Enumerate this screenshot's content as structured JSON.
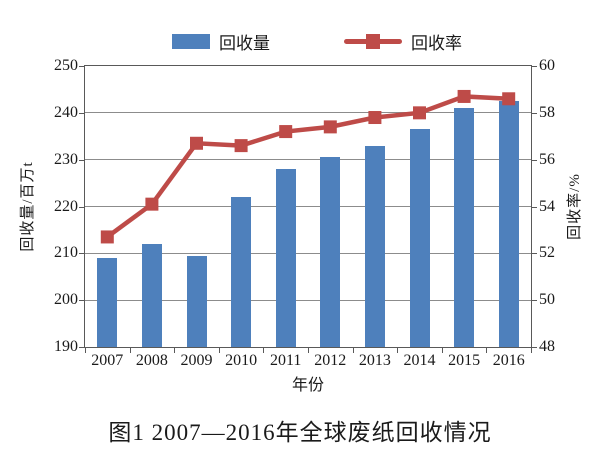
{
  "figure": {
    "caption": "图1 2007—2016年全球废纸回收情况"
  },
  "chart_data": {
    "type": "combo",
    "categories": [
      "2007",
      "2008",
      "2009",
      "2010",
      "2011",
      "2012",
      "2013",
      "2014",
      "2015",
      "2016"
    ],
    "series": [
      {
        "name": "回收量",
        "type": "bar",
        "axis": "left",
        "values": [
          209,
          212,
          209.5,
          222,
          228,
          230.5,
          233,
          236.5,
          241,
          242.5
        ]
      },
      {
        "name": "回收率",
        "type": "line",
        "axis": "right",
        "values": [
          52.7,
          54.1,
          56.7,
          56.6,
          57.2,
          57.4,
          57.8,
          58.0,
          58.7,
          58.6
        ]
      }
    ],
    "left_axis": {
      "title": "回收量/百万t",
      "min": 190,
      "max": 250,
      "ticks": [
        250,
        240,
        230,
        220,
        210,
        200,
        190
      ]
    },
    "right_axis": {
      "title": "回收率/%",
      "min": 48,
      "max": 60,
      "ticks": [
        60,
        58,
        56,
        54,
        52,
        50,
        48
      ]
    },
    "x_axis": {
      "title": "年份"
    },
    "grid": true,
    "legend_position": "top"
  },
  "colors": {
    "bar": "#4E80BC",
    "line": "#BE4B48",
    "grid": "#8C8C8C",
    "plot_border": "#595959",
    "text": "#1a1a1a",
    "background": "#ffffff"
  }
}
